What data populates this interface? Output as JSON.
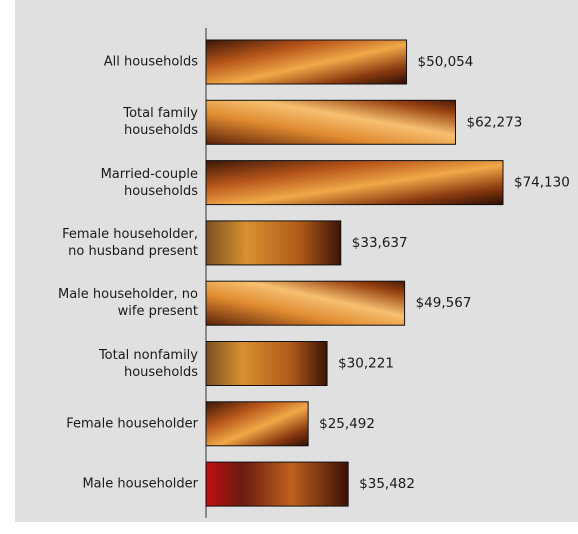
{
  "chart_data": {
    "type": "bar",
    "orientation": "horizontal",
    "categories": [
      "All households",
      "Total family households",
      "Married-couple households",
      "Female householder, no husband present",
      "Male householder, no wife present",
      "Total nonfamily households",
      "Female householder",
      "Male householder"
    ],
    "values": [
      50054,
      62273,
      74130,
      33637,
      49567,
      30221,
      25492,
      35482
    ],
    "value_labels": [
      "$50,054",
      "$62,273",
      "$74,130",
      "$33,637",
      "$49,567",
      "$30,221",
      "$25,492",
      "$35,482"
    ]
  }
}
